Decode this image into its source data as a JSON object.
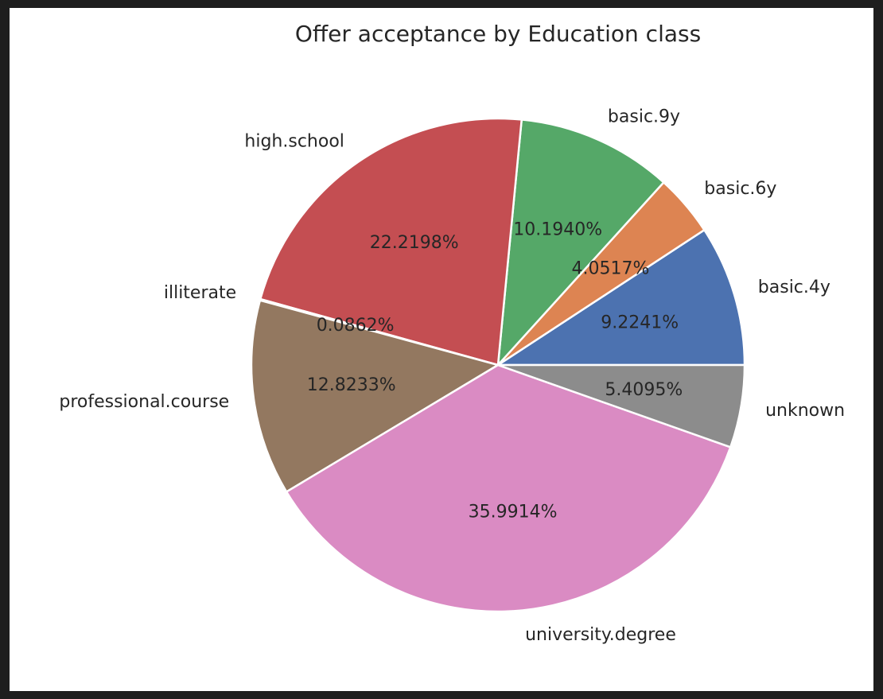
{
  "chart_data": {
    "type": "pie",
    "title": "Offer acceptance by Education class",
    "categories": [
      "basic.4y",
      "basic.6y",
      "basic.9y",
      "high.school",
      "illiterate",
      "professional.course",
      "university.degree",
      "unknown"
    ],
    "values": [
      9.2241,
      4.0517,
      10.194,
      22.2198,
      0.0862,
      12.8233,
      35.9914,
      5.4095
    ],
    "value_labels": [
      "9.2241%",
      "4.0517%",
      "10.1940%",
      "22.2198%",
      "0.0862%",
      "12.8233%",
      "35.9914%",
      "5.4095%"
    ],
    "colors": [
      "#4c72b0",
      "#dd8452",
      "#55a868",
      "#c44e52",
      "#8172b3",
      "#937860",
      "#da8bc3",
      "#8c8c8c"
    ],
    "start_angle_deg": 0,
    "direction": "counterclockwise",
    "legend": "none"
  }
}
